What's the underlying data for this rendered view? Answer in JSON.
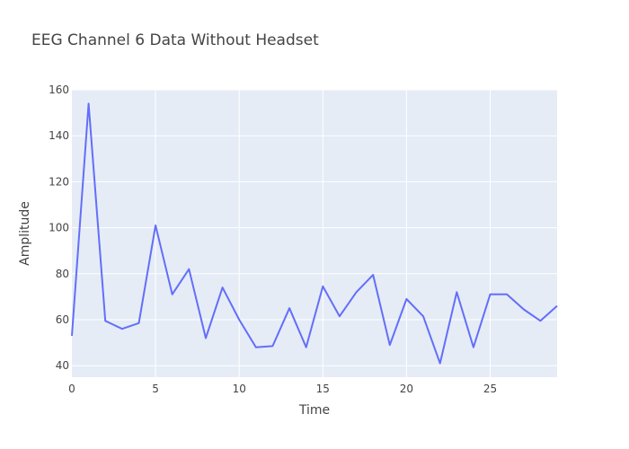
{
  "chart_data": {
    "type": "line",
    "title": "EEG Channel 6 Data Without Headset",
    "xlabel": "Time",
    "ylabel": "Amplitude",
    "xlim": [
      0,
      29
    ],
    "ylim": [
      35,
      160
    ],
    "xticks": [
      0,
      5,
      10,
      15,
      20,
      25
    ],
    "yticks": [
      40,
      60,
      80,
      100,
      120,
      140,
      160
    ],
    "grid": true,
    "colors": {
      "line": "#636efa",
      "plot_bg": "#e5ecf6",
      "grid": "#ffffff",
      "text": "#444444"
    },
    "series": [
      {
        "x": [
          0,
          1,
          2,
          3,
          4,
          5,
          6,
          7,
          8,
          9,
          10,
          11,
          12,
          13,
          14,
          15,
          16,
          17,
          18,
          19,
          20,
          21,
          22,
          23,
          24,
          25,
          26,
          27,
          28,
          29
        ],
        "values": [
          53,
          154,
          59.5,
          56,
          58.5,
          101,
          71,
          82,
          52,
          74,
          60,
          48,
          48.5,
          65,
          48,
          74.5,
          61.5,
          72,
          79.5,
          49,
          69,
          61.5,
          41,
          72,
          48,
          71,
          71,
          64.5,
          59.5,
          66
        ]
      }
    ]
  }
}
